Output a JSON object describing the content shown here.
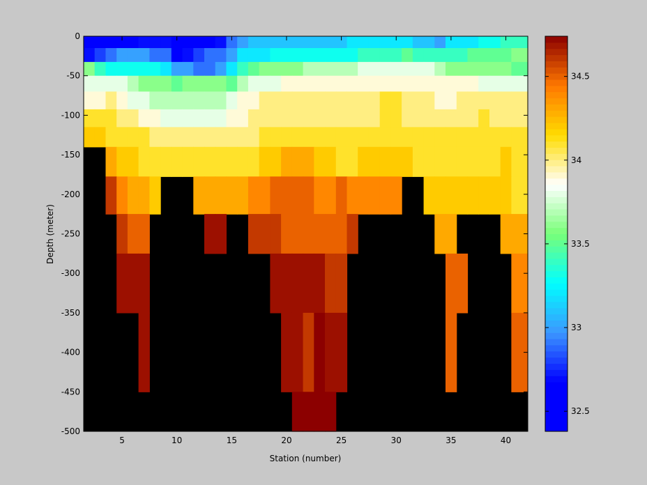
{
  "chart_data": {
    "type": "heatmap",
    "xlabel": "Station (number)",
    "ylabel": "Depth (meter)",
    "xlim": [
      1.5,
      42
    ],
    "ylim": [
      -500,
      0
    ],
    "x_ticks": [
      5,
      10,
      15,
      20,
      25,
      30,
      35,
      40
    ],
    "y_ticks": [
      0,
      -50,
      -100,
      -150,
      -200,
      -250,
      -300,
      -350,
      -400,
      -450,
      -500
    ],
    "depth_levels": [
      -5,
      -25,
      -40,
      -60,
      -80,
      -105,
      -125,
      -155,
      -200,
      -250,
      -300,
      -400,
      -500
    ],
    "stations": [
      2,
      3,
      4,
      5,
      6,
      7,
      8,
      9,
      10,
      11,
      12,
      13,
      14,
      15,
      16,
      17,
      18,
      19,
      20,
      21,
      22,
      23,
      24,
      25,
      26,
      27,
      28,
      29,
      30,
      31,
      32,
      33,
      34,
      35,
      36,
      37,
      38,
      39,
      40,
      41
    ],
    "no_data_color": "#000000",
    "values_note": "",
    "values": [
      [
        32.4,
        32.4,
        32.5,
        32.5,
        32.6,
        32.7,
        32.7,
        32.7,
        32.4,
        32.5,
        32.6,
        32.6,
        32.7,
        32.9,
        33.0,
        33.1,
        33.1,
        33.1,
        33.1,
        33.1,
        33.1,
        33.1,
        33.1,
        33.1,
        33.2,
        33.2,
        33.2,
        33.2,
        33.2,
        33.2,
        33.1,
        33.1,
        33.0,
        33.2,
        33.2,
        33.2,
        33.3,
        33.3,
        33.4,
        33.4
      ],
      [
        32.7,
        32.8,
        32.9,
        33.0,
        33.0,
        33.0,
        32.9,
        32.9,
        32.6,
        32.7,
        32.8,
        32.9,
        32.9,
        33.0,
        33.2,
        33.2,
        33.2,
        33.3,
        33.3,
        33.3,
        33.3,
        33.3,
        33.3,
        33.3,
        33.3,
        33.4,
        33.4,
        33.4,
        33.4,
        33.5,
        33.4,
        33.4,
        33.4,
        33.4,
        33.4,
        33.5,
        33.5,
        33.5,
        33.5,
        33.6
      ],
      [
        33.6,
        33.4,
        33.3,
        33.3,
        33.3,
        33.3,
        33.3,
        33.2,
        33.0,
        33.0,
        32.9,
        32.9,
        33.0,
        33.2,
        33.4,
        33.5,
        33.6,
        33.6,
        33.6,
        33.6,
        33.7,
        33.7,
        33.7,
        33.7,
        33.7,
        33.8,
        33.8,
        33.8,
        33.8,
        33.8,
        33.8,
        33.8,
        33.7,
        33.6,
        33.6,
        33.6,
        33.6,
        33.6,
        33.6,
        33.5
      ],
      [
        33.8,
        33.8,
        33.8,
        33.8,
        33.7,
        33.6,
        33.6,
        33.6,
        33.5,
        33.6,
        33.6,
        33.6,
        33.6,
        33.5,
        33.7,
        33.8,
        33.8,
        33.8,
        33.9,
        33.9,
        33.9,
        33.9,
        33.9,
        33.9,
        33.9,
        33.9,
        33.9,
        33.9,
        33.9,
        33.9,
        33.9,
        33.9,
        33.9,
        33.9,
        33.9,
        33.9,
        33.8,
        33.8,
        33.8,
        33.8
      ],
      [
        33.9,
        33.9,
        34.0,
        33.9,
        33.8,
        33.8,
        33.7,
        33.7,
        33.7,
        33.7,
        33.7,
        33.7,
        33.7,
        33.8,
        33.9,
        33.9,
        34.0,
        34.0,
        34.0,
        34.0,
        34.0,
        34.0,
        34.0,
        34.0,
        34.0,
        34.0,
        34.0,
        34.1,
        34.1,
        34.0,
        34.0,
        34.0,
        33.9,
        33.9,
        34.0,
        34.0,
        34.0,
        34.0,
        34.0,
        34.0
      ],
      [
        34.1,
        34.1,
        34.1,
        34.0,
        34.0,
        33.9,
        33.9,
        33.8,
        33.8,
        33.8,
        33.8,
        33.8,
        33.8,
        33.9,
        33.9,
        34.0,
        34.0,
        34.0,
        34.0,
        34.0,
        34.0,
        34.0,
        34.0,
        34.0,
        34.0,
        34.0,
        34.0,
        34.1,
        34.1,
        34.0,
        34.0,
        34.0,
        34.0,
        34.0,
        34.0,
        34.0,
        34.1,
        34.0,
        34.0,
        34.0
      ],
      [
        34.2,
        34.2,
        34.1,
        34.1,
        34.1,
        34.1,
        34.0,
        34.0,
        34.0,
        34.0,
        34.0,
        34.0,
        34.0,
        34.0,
        34.0,
        34.0,
        34.1,
        34.1,
        34.1,
        34.1,
        34.1,
        34.1,
        34.1,
        34.1,
        34.1,
        34.1,
        34.1,
        34.1,
        34.1,
        34.1,
        34.1,
        34.1,
        34.1,
        34.1,
        34.1,
        34.1,
        34.1,
        34.1,
        34.1,
        34.1
      ],
      [
        null,
        null,
        34.3,
        34.2,
        34.2,
        34.1,
        34.1,
        34.1,
        34.1,
        34.1,
        34.1,
        34.1,
        34.1,
        34.1,
        34.1,
        34.1,
        34.2,
        34.2,
        34.3,
        34.3,
        34.3,
        34.2,
        34.2,
        34.1,
        34.1,
        34.2,
        34.2,
        34.2,
        34.2,
        34.2,
        34.1,
        34.1,
        34.1,
        34.1,
        34.1,
        34.1,
        34.1,
        34.1,
        34.2,
        34.1
      ],
      [
        null,
        null,
        34.6,
        34.4,
        34.3,
        34.3,
        34.2,
        null,
        null,
        null,
        34.3,
        34.3,
        34.3,
        34.3,
        34.3,
        34.4,
        34.4,
        34.5,
        34.5,
        34.5,
        34.5,
        34.4,
        34.4,
        34.5,
        34.4,
        34.4,
        34.4,
        34.4,
        34.4,
        null,
        null,
        34.2,
        34.2,
        34.2,
        34.2,
        34.2,
        34.2,
        34.2,
        34.2,
        34.1
      ],
      [
        null,
        null,
        null,
        34.6,
        34.5,
        34.5,
        null,
        null,
        null,
        null,
        null,
        34.7,
        34.7,
        null,
        null,
        34.6,
        34.6,
        34.6,
        34.5,
        34.5,
        34.5,
        34.5,
        34.5,
        34.5,
        34.6,
        null,
        null,
        null,
        null,
        null,
        null,
        null,
        34.3,
        34.3,
        null,
        null,
        null,
        null,
        34.3,
        34.3
      ],
      [
        null,
        null,
        null,
        34.7,
        34.7,
        34.7,
        null,
        null,
        null,
        null,
        null,
        null,
        null,
        null,
        null,
        null,
        null,
        34.7,
        34.7,
        34.7,
        34.7,
        34.7,
        34.6,
        34.6,
        null,
        null,
        null,
        null,
        null,
        null,
        null,
        null,
        null,
        34.5,
        34.5,
        null,
        null,
        null,
        null,
        34.4
      ],
      [
        null,
        null,
        null,
        null,
        null,
        34.7,
        null,
        null,
        null,
        null,
        null,
        null,
        null,
        null,
        null,
        null,
        null,
        null,
        34.7,
        34.7,
        34.6,
        34.8,
        34.7,
        34.7,
        null,
        null,
        null,
        null,
        null,
        null,
        null,
        null,
        null,
        34.5,
        null,
        null,
        null,
        null,
        null,
        34.5
      ],
      [
        null,
        null,
        null,
        null,
        null,
        null,
        null,
        null,
        null,
        null,
        null,
        null,
        null,
        null,
        null,
        null,
        null,
        null,
        null,
        34.8,
        34.8,
        34.8,
        34.8,
        null,
        null,
        null,
        null,
        null,
        null,
        null,
        null,
        null,
        null,
        null,
        null,
        null,
        null,
        null,
        null,
        null
      ]
    ],
    "colorbar": {
      "min": 32.38,
      "max": 34.74,
      "ticks": [
        32.5,
        33,
        33.5,
        34,
        34.5
      ],
      "colormap": "jet-like"
    }
  }
}
